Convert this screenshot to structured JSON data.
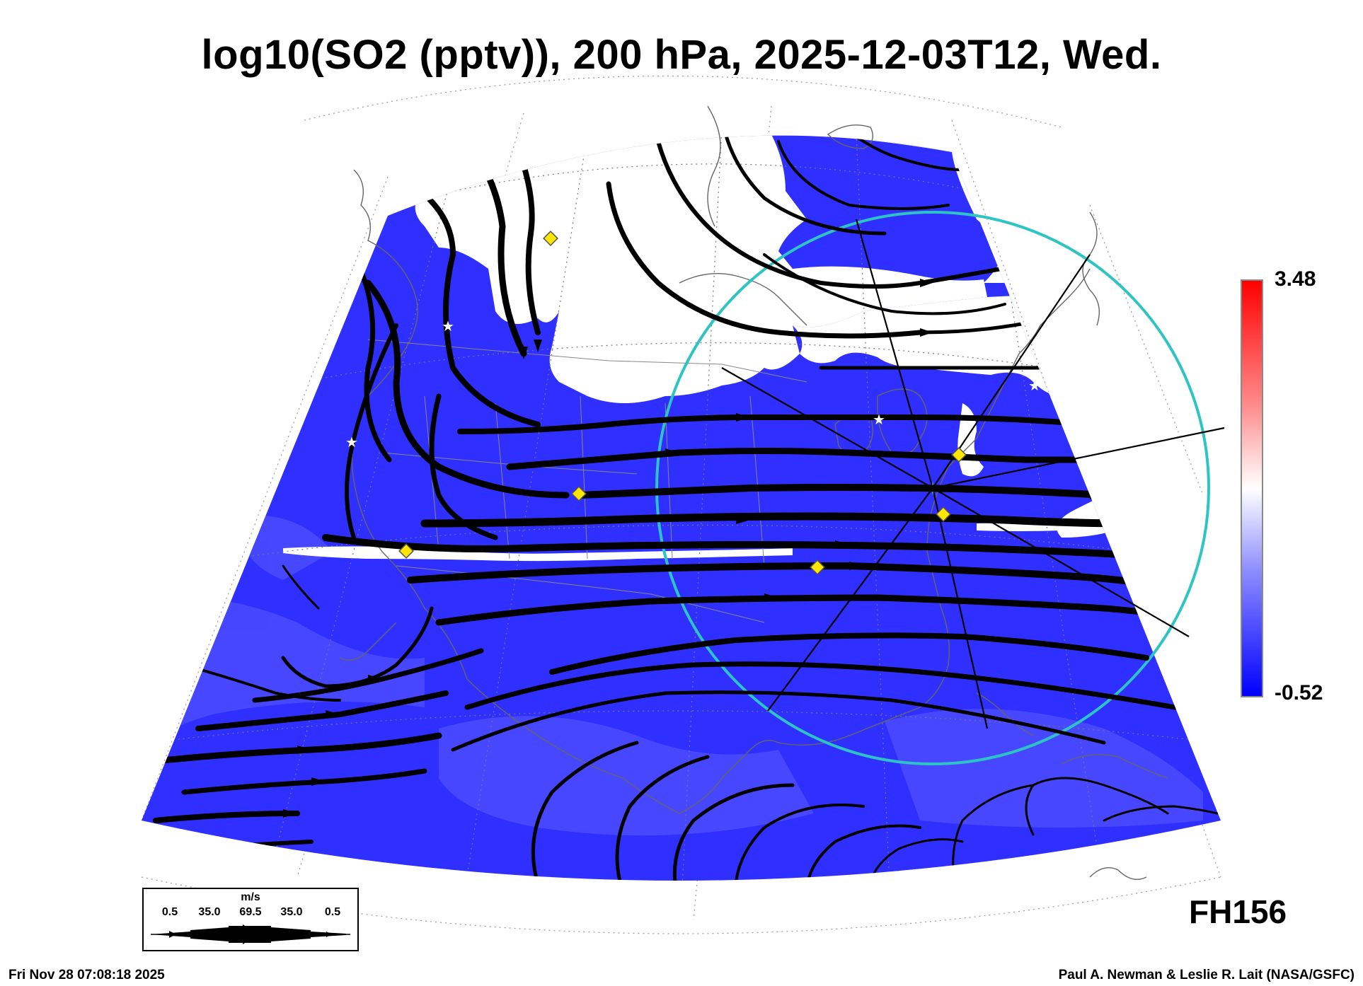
{
  "title": "log10(SO2 (pptv)), 200 hPa, 2025-12-03T12, Wed.",
  "colorbar": {
    "max_label": "3.48",
    "min_label": "-0.52",
    "colors": [
      "#ff0000",
      "#ffffff",
      "#0000ff"
    ]
  },
  "forecast_hour": "FH156",
  "timestamp": "Fri Nov 28 07:08:18 2025",
  "credit": "Paul A. Newman & Leslie R. Lait (NASA/GSFC)",
  "wind_key": {
    "units": "m/s",
    "ticks": [
      "0.5",
      "35.0",
      "69.5",
      "35.0",
      "0.5"
    ]
  },
  "map": {
    "field_color": "#2f2fff",
    "low_value_color": "#ffffff",
    "circle_color": "#2ec4c4",
    "marker_color": "#ffe600",
    "streamline_color": "#000000"
  }
}
